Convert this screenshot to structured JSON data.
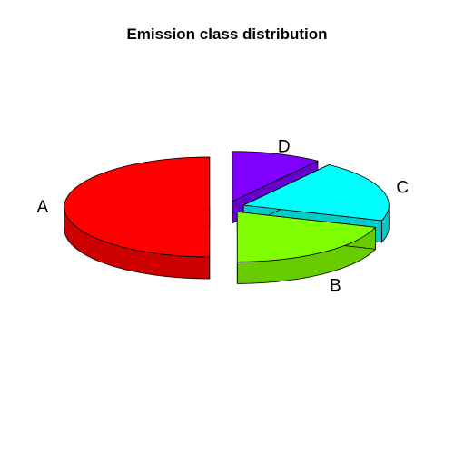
{
  "chart_data": {
    "type": "pie",
    "style": "3d-exploded",
    "title": "Emission class distribution",
    "slices": [
      {
        "label": "A",
        "value": 50,
        "color": "#FF0000",
        "side_color": "#CC0000"
      },
      {
        "label": "B",
        "value": 20,
        "color": "#80FF00",
        "side_color": "#66CC00"
      },
      {
        "label": "C",
        "value": 20,
        "color": "#00FFFF",
        "side_color": "#00CCCC"
      },
      {
        "label": "D",
        "value": 10,
        "color": "#8000FF",
        "side_color": "#6600CC"
      }
    ],
    "legend": "none"
  }
}
